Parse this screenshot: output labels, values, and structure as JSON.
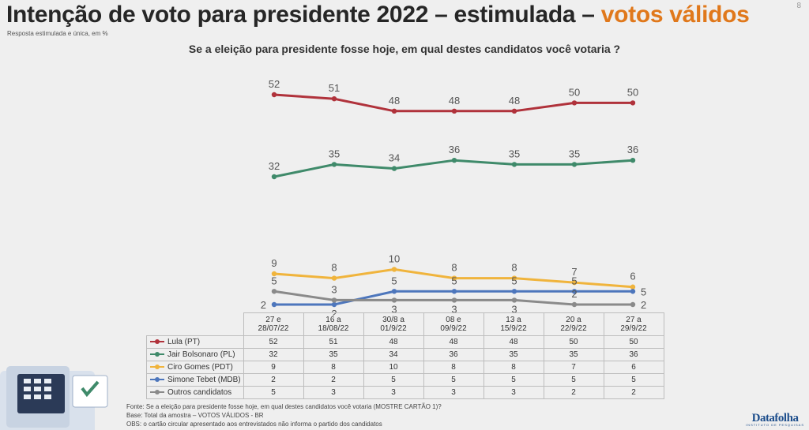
{
  "title_main": "Intenção de voto para presidente 2022 – estimulada –",
  "title_accent": "votos válidos",
  "page_number": "8",
  "subtitle": "Resposta estimulada e única, em %",
  "question": "Se a eleição para presidente fosse hoje, em qual destes candidatos você votaria ?",
  "colors": {
    "title_accent": "#e0781b",
    "lula": "#b0323b",
    "bolsonaro": "#3f8a6a",
    "ciro": "#f0b43c",
    "simone": "#4d76bc",
    "outros": "#8a8a8a"
  },
  "chart_data": {
    "type": "line",
    "x": [
      "27 e 28/07/22",
      "16 a 18/08/22",
      "30/8 a 01/9/22",
      "08 e 09/9/22",
      "13 a 15/9/22",
      "20 a 22/9/22",
      "27 a 29/9/22"
    ],
    "x_lines": [
      [
        "27 e",
        "28/07/22"
      ],
      [
        "16 a",
        "18/08/22"
      ],
      [
        "30/8 a",
        "01/9/22"
      ],
      [
        "08 e",
        "09/9/22"
      ],
      [
        "13 a",
        "15/9/22"
      ],
      [
        "20 a",
        "22/9/22"
      ],
      [
        "27 a",
        "29/9/22"
      ]
    ],
    "series": [
      {
        "name": "Lula (PT)",
        "color": "#b0323b",
        "values": [
          52,
          51,
          48,
          48,
          48,
          50,
          50
        ]
      },
      {
        "name": "Jair Bolsonaro (PL)",
        "color": "#3f8a6a",
        "values": [
          32,
          35,
          34,
          36,
          35,
          35,
          36
        ]
      },
      {
        "name": "Ciro Gomes (PDT)",
        "color": "#f0b43c",
        "values": [
          9,
          8,
          10,
          8,
          8,
          7,
          6
        ]
      },
      {
        "name": "Simone Tebet (MDB)",
        "color": "#4d76bc",
        "values": [
          2,
          2,
          5,
          5,
          5,
          5,
          5
        ]
      },
      {
        "name": "Outros candidatos",
        "color": "#8a8a8a",
        "values": [
          5,
          3,
          3,
          3,
          3,
          2,
          2
        ]
      }
    ],
    "ylim": [
      0,
      55
    ],
    "grid": false,
    "legend": "table below chart"
  },
  "notes": [
    "Fonte: Se a eleição para presidente fosse hoje, em qual destes candidatos você votaria (MOSTRE CARTÃO 1)?",
    "Base: Total da amostra – VOTOS VÁLIDOS - BR",
    "OBS: o cartão circular apresentado aos entrevistados não informa o partido dos candidatos"
  ],
  "logo": {
    "brand": "Datafolha",
    "tagline": "INSTITUTO DE PESQUISAS"
  }
}
